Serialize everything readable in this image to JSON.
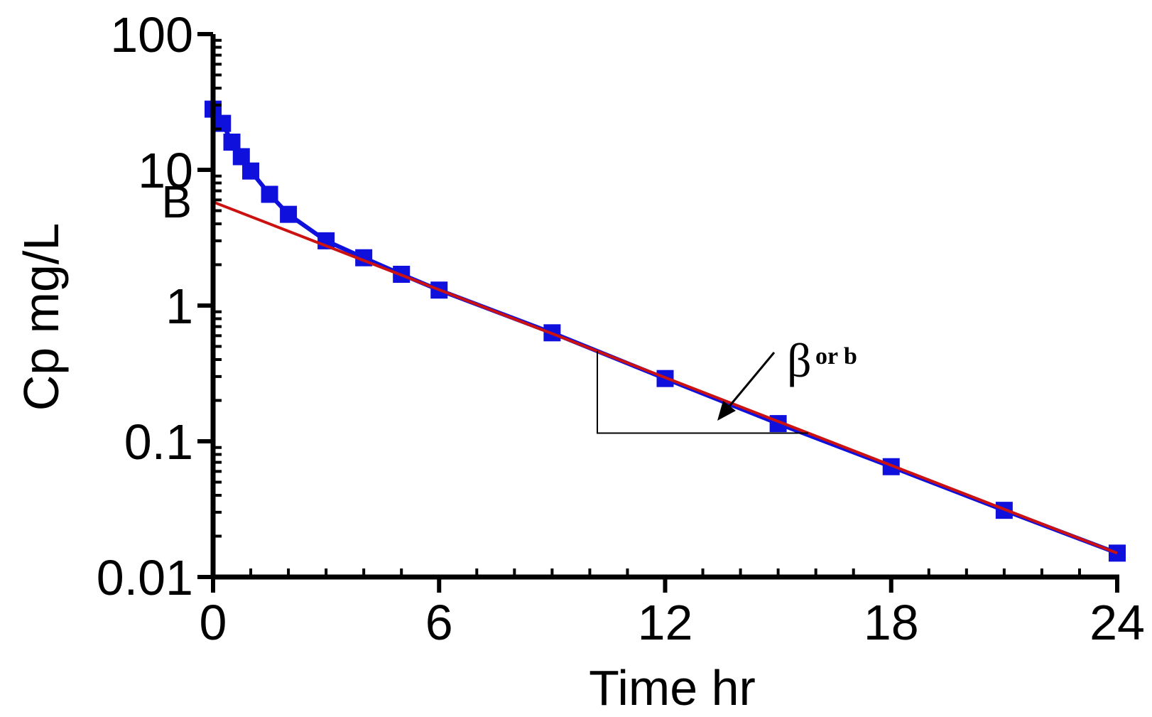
{
  "chart_data": {
    "type": "line",
    "xlabel": "Time hr",
    "ylabel": "Cp mg/L",
    "xlim": [
      0,
      24
    ],
    "ylim": [
      0.01,
      100
    ],
    "y_scale": "log",
    "x_ticks": [
      0,
      6,
      12,
      18,
      24
    ],
    "x_tick_labels": [
      "0",
      "6",
      "12",
      "18",
      "24"
    ],
    "y_ticks": [
      0.01,
      0.1,
      1,
      10,
      100
    ],
    "y_tick_labels": [
      "0.01",
      "0.1",
      "1",
      "10",
      "100"
    ],
    "grid": false,
    "series": [
      {
        "color": "#1010dd",
        "marker": "square",
        "x": [
          0,
          0.25,
          0.5,
          0.75,
          1,
          1.5,
          2,
          3,
          4,
          5,
          6,
          9,
          12,
          15,
          18,
          21,
          24
        ],
        "y": [
          28,
          22,
          16,
          12.5,
          9.8,
          6.6,
          4.7,
          3.0,
          2.25,
          1.7,
          1.3,
          0.63,
          0.29,
          0.135,
          0.065,
          0.031,
          0.015
        ]
      },
      {
        "color": "#cc1111",
        "marker": "none",
        "x": [
          0,
          24
        ],
        "y": [
          5.8,
          0.015
        ]
      }
    ],
    "annotations": {
      "intercept_label": "B",
      "intercept_value": 5.8,
      "slope_label_symbol": "β",
      "slope_label_rest": " or b",
      "slope_triangle": {
        "x_start": 10.2,
        "x_end": 15.8
      }
    }
  }
}
